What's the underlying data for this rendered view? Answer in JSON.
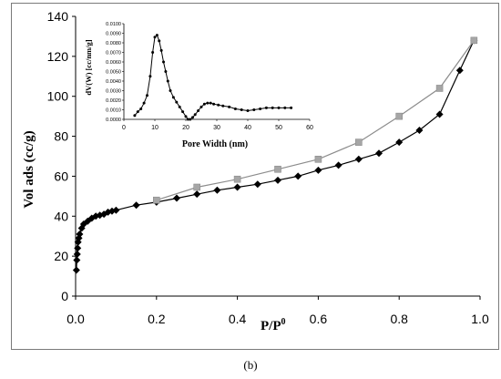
{
  "caption": "(b)",
  "chart_data": [
    {
      "type": "scatter",
      "chart_role": "main",
      "xlabel": "P/P",
      "xlabel_superscript": "0",
      "ylabel": "Vol ads (cc/g)",
      "xlim": [
        0.0,
        1.0
      ],
      "ylim": [
        0,
        140
      ],
      "x_ticks": [
        "0.0",
        "0.2",
        "0.4",
        "0.6",
        "0.8",
        "1.0"
      ],
      "y_ticks": [
        "0",
        "20",
        "40",
        "60",
        "80",
        "100",
        "120",
        "140"
      ],
      "series": [
        {
          "role": "adsorption",
          "marker": "diamond",
          "color": "#000000",
          "x": [
            0.002,
            0.003,
            0.004,
            0.005,
            0.006,
            0.008,
            0.01,
            0.015,
            0.02,
            0.03,
            0.04,
            0.05,
            0.06,
            0.07,
            0.08,
            0.09,
            0.1,
            0.15,
            0.2,
            0.25,
            0.3,
            0.35,
            0.4,
            0.45,
            0.5,
            0.55,
            0.6,
            0.65,
            0.7,
            0.75,
            0.8,
            0.85,
            0.9,
            0.95,
            0.985
          ],
          "y": [
            13,
            18,
            21,
            24,
            27,
            29,
            31,
            34,
            36,
            37.5,
            39,
            40,
            40.5,
            41,
            42,
            42.5,
            43,
            45.5,
            47,
            49,
            51,
            53,
            54.5,
            56,
            58,
            60,
            63,
            65.5,
            68.5,
            71.5,
            77,
            83,
            91,
            113,
            128
          ]
        },
        {
          "role": "desorption",
          "marker": "square",
          "color": "#a6a6a6",
          "x": [
            0.2,
            0.3,
            0.4,
            0.5,
            0.6,
            0.7,
            0.8,
            0.9,
            0.985
          ],
          "y": [
            48,
            54.5,
            58.5,
            63.5,
            68.5,
            77,
            90,
            104,
            128
          ]
        }
      ]
    },
    {
      "type": "line",
      "chart_role": "inset",
      "xlabel": "Pore Width (nm)",
      "ylabel": "dV(W) [cc/nm/g]",
      "xlim": [
        0,
        60
      ],
      "ylim": [
        0,
        0.01
      ],
      "x_ticks": [
        "0",
        "10",
        "20",
        "30",
        "40",
        "50",
        "60"
      ],
      "y_ticks": [
        "0.0000",
        "0.0010",
        "0.0020",
        "0.0030",
        "0.0040",
        "0.0050",
        "0.0060",
        "0.0070",
        "0.0080",
        "0.0090",
        "0.0100"
      ],
      "series": [
        {
          "marker": "dot",
          "color": "#000000",
          "x": [
            3.5,
            4.5,
            5.5,
            6.5,
            7.5,
            8.5,
            9.3,
            10.0,
            10.7,
            11.4,
            12.1,
            12.8,
            13.5,
            14.2,
            15.0,
            16.0,
            17.0,
            18.0,
            19.0,
            20.0,
            20.7,
            21.4,
            22.2,
            23.0,
            24.0,
            25.0,
            26.0,
            27.0,
            28.0,
            29.0,
            30.5,
            32.0,
            34.0,
            36.0,
            38.0,
            40.0,
            42.0,
            44.0,
            46.0,
            48.0,
            50.0,
            52.0,
            54.0
          ],
          "y": [
            0.0004,
            0.0008,
            0.0011,
            0.0017,
            0.0025,
            0.0045,
            0.007,
            0.0086,
            0.0088,
            0.0082,
            0.0072,
            0.006,
            0.005,
            0.004,
            0.003,
            0.0023,
            0.0018,
            0.0013,
            0.0008,
            0.0003,
            0.0,
            0.0,
            0.0002,
            0.0005,
            0.0009,
            0.0013,
            0.0016,
            0.0017,
            0.0017,
            0.0016,
            0.0015,
            0.0014,
            0.0013,
            0.0011,
            0.001,
            0.0009,
            0.001,
            0.0011,
            0.0012,
            0.0012,
            0.0012,
            0.0012,
            0.0012
          ]
        }
      ]
    }
  ]
}
